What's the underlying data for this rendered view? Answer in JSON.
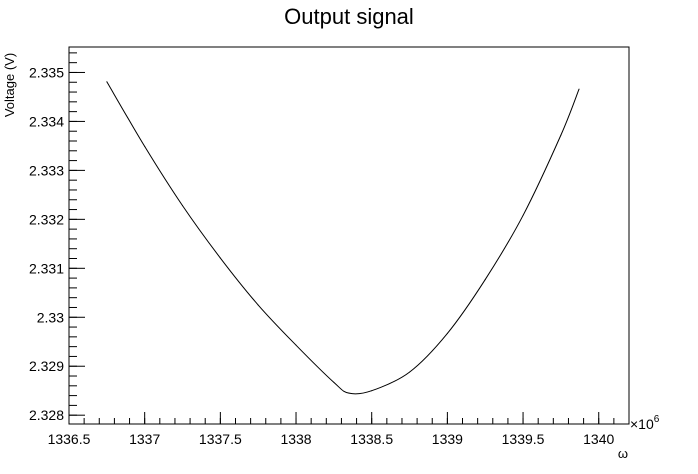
{
  "chart_data": {
    "type": "line",
    "title": "Output signal",
    "xlabel": "ω",
    "ylabel": "Voltage (V)",
    "x_multiplier_base": "×10",
    "x_multiplier_exponent": "6",
    "xlim": [
      1336.5,
      1340.2
    ],
    "ylim": [
      2.32782,
      2.33552
    ],
    "x_ticks": [
      1336.5,
      1337,
      1337.5,
      1338,
      1338.5,
      1339,
      1339.5,
      1340
    ],
    "x_tick_labels": [
      "1336.5",
      "1337",
      "1337.5",
      "1338",
      "1338.5",
      "1339",
      "1339.5",
      "1340"
    ],
    "y_ticks": [
      2.328,
      2.329,
      2.33,
      2.331,
      2.332,
      2.333,
      2.334,
      2.335
    ],
    "y_tick_labels": [
      "2.328",
      "2.329",
      "2.33",
      "2.331",
      "2.332",
      "2.333",
      "2.334",
      "2.335"
    ],
    "grid": false,
    "legend": "none",
    "line_color": "#000000",
    "series": [
      {
        "x": [
          1336.75,
          1337.0,
          1337.25,
          1337.5,
          1337.75,
          1338.0,
          1338.25,
          1338.35,
          1338.5,
          1338.75,
          1339.0,
          1339.25,
          1339.5,
          1339.75,
          1339.87
        ],
        "y": [
          2.33481,
          2.33349,
          2.33228,
          2.33121,
          2.33025,
          2.32943,
          2.32867,
          2.32845,
          2.3285,
          2.32888,
          2.32967,
          2.33077,
          2.33208,
          2.33372,
          2.33466
        ]
      }
    ]
  }
}
